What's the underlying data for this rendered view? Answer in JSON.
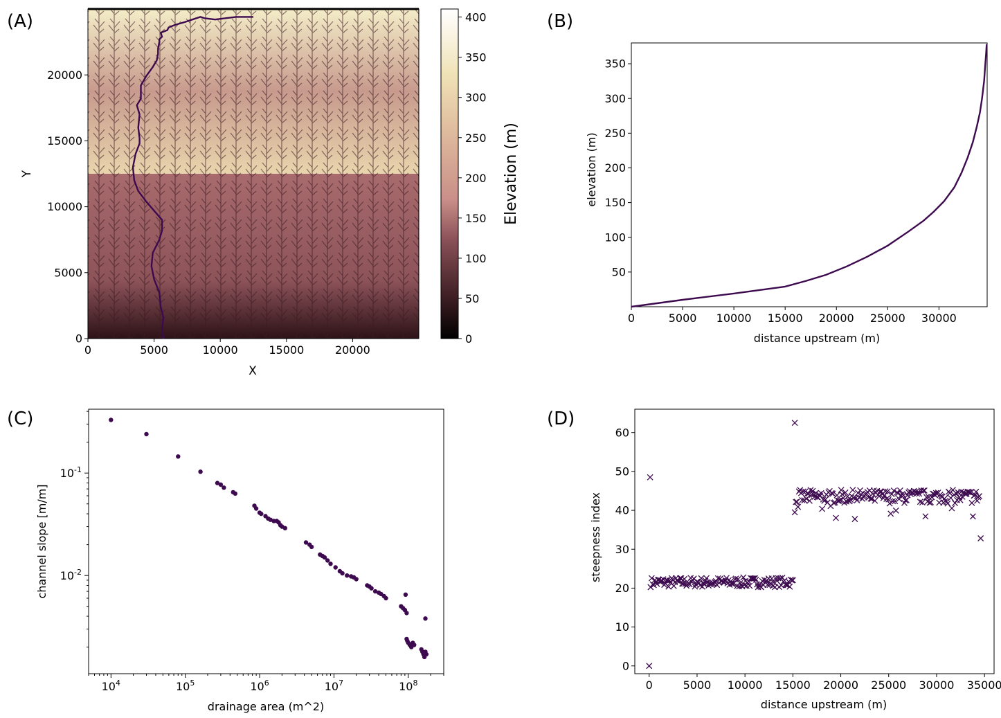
{
  "panels": {
    "a": {
      "label": "(A)"
    },
    "b": {
      "label": "(B)"
    },
    "c": {
      "label": "(C)"
    },
    "d": {
      "label": "(D)"
    }
  },
  "colors": {
    "line": "#3d0a4f",
    "terrain_low": "#1a0a0c",
    "terrain_mid": "#c98e88",
    "terrain_high": "#fdfbe9"
  },
  "chart_data": [
    {
      "id": "A",
      "type": "heatmap",
      "title": "",
      "xlabel": "X",
      "ylabel": "Y",
      "xlim": [
        0,
        25000
      ],
      "ylim": [
        0,
        25000
      ],
      "xticks": [
        0,
        5000,
        10000,
        15000,
        20000
      ],
      "yticks": [
        0,
        5000,
        10000,
        15000,
        20000
      ],
      "colorbar": {
        "label": "Elevation (m)",
        "range": [
          0,
          410
        ],
        "ticks": [
          0,
          50,
          100,
          150,
          200,
          250,
          300,
          350,
          400
        ]
      },
      "channel_path": {
        "x": [
          5700,
          5600,
          5700,
          5500,
          5400,
          5000,
          4800,
          4900,
          5400,
          5600,
          5600,
          5000,
          4400,
          3800,
          3500,
          3400,
          3600,
          3900,
          3900,
          3800,
          3900,
          3700,
          4000,
          4000,
          4400,
          4900,
          5200,
          5300,
          5300,
          5400,
          5400,
          5600,
          5500,
          6000,
          6100,
          6600,
          7300,
          7900,
          8500,
          8800,
          9600,
          10400,
          11200,
          12000,
          12500
        ],
        "y": [
          0,
          700,
          1600,
          2400,
          3500,
          4500,
          5500,
          6500,
          7500,
          8200,
          9000,
          9700,
          10400,
          11200,
          12000,
          13000,
          14000,
          14800,
          15200,
          16000,
          17000,
          17700,
          18200,
          19200,
          19900,
          20600,
          21100,
          21600,
          22000,
          22500,
          22700,
          22900,
          23200,
          23400,
          23600,
          23800,
          24000,
          24200,
          24400,
          24300,
          24200,
          24300,
          24400,
          24400,
          24400
        ]
      }
    },
    {
      "id": "B",
      "type": "line",
      "title": "",
      "xlabel": "distance upstream (m)",
      "ylabel": "elevation (m)",
      "xlim": [
        0,
        34700
      ],
      "ylim": [
        0,
        380
      ],
      "xticks": [
        0,
        5000,
        10000,
        15000,
        20000,
        25000,
        30000
      ],
      "yticks": [
        50,
        100,
        150,
        200,
        250,
        300,
        350
      ],
      "x": [
        0,
        5000,
        10000,
        15000,
        17000,
        19000,
        21000,
        23000,
        25000,
        27000,
        28500,
        29500,
        30500,
        31500,
        32200,
        32800,
        33300,
        33700,
        34000,
        34200,
        34400,
        34500,
        34600,
        34650
      ],
      "y": [
        0,
        10,
        19,
        29,
        37,
        46,
        58,
        72,
        88,
        108,
        124,
        137,
        152,
        172,
        193,
        215,
        237,
        260,
        280,
        300,
        325,
        345,
        365,
        378
      ]
    },
    {
      "id": "C",
      "type": "scatter",
      "title": "",
      "xlabel": "drainage area (m^2)",
      "ylabel": "channel slope [m/m]",
      "xscale": "log",
      "yscale": "log",
      "xlim": [
        5000,
        300000000
      ],
      "ylim": [
        0.0011,
        0.42
      ],
      "xtick_labels": [
        "10^4",
        "10^5",
        "10^6",
        "10^7",
        "10^8"
      ],
      "ytick_labels": [
        "10^-2",
        "10^-1"
      ],
      "x": [
        10000,
        30000,
        80000,
        160000,
        270000,
        300000,
        330000,
        440000,
        470000,
        850000,
        900000,
        1000000,
        1050000,
        1200000,
        1300000,
        1400000,
        1550000,
        1700000,
        1800000,
        1900000,
        2000000,
        2200000,
        4200000,
        4700000,
        5000000,
        6500000,
        7000000,
        7500000,
        8200000,
        9000000,
        10500000,
        12000000,
        13000000,
        15000000,
        17000000,
        18500000,
        20000000,
        28000000,
        30000000,
        32000000,
        36000000,
        40000000,
        43000000,
        47000000,
        50000000,
        80000000,
        85000000,
        90000000,
        92000000,
        95000000,
        95000000,
        97000000,
        100000000,
        105000000,
        110000000,
        115000000,
        120000000,
        150000000,
        155000000,
        160000000,
        165000000,
        170000000,
        175000000,
        170000000
      ],
      "y": [
        0.33,
        0.24,
        0.145,
        0.103,
        0.08,
        0.077,
        0.072,
        0.065,
        0.063,
        0.048,
        0.045,
        0.041,
        0.04,
        0.038,
        0.036,
        0.035,
        0.034,
        0.034,
        0.033,
        0.031,
        0.03,
        0.029,
        0.021,
        0.02,
        0.019,
        0.016,
        0.0155,
        0.015,
        0.014,
        0.013,
        0.012,
        0.011,
        0.0105,
        0.01,
        0.0098,
        0.0096,
        0.0092,
        0.008,
        0.0078,
        0.0075,
        0.007,
        0.0068,
        0.0066,
        0.0063,
        0.006,
        0.005,
        0.0048,
        0.0046,
        0.0065,
        0.0043,
        0.0024,
        0.0023,
        0.0022,
        0.0021,
        0.002,
        0.0022,
        0.0021,
        0.0019,
        0.0018,
        0.0017,
        0.0016,
        0.0018,
        0.0017,
        0.0038
      ]
    },
    {
      "id": "D",
      "type": "scatter",
      "title": "",
      "xlabel": "distance upstream (m)",
      "ylabel": "steepness index",
      "xlim": [
        -1500,
        36000
      ],
      "ylim": [
        -2,
        66
      ],
      "xticks": [
        0,
        5000,
        10000,
        15000,
        20000,
        25000,
        30000,
        35000
      ],
      "yticks": [
        0,
        10,
        20,
        30,
        40,
        50,
        60
      ],
      "outliers": {
        "x": [
          0,
          100,
          15200,
          34600
        ],
        "y": [
          0,
          48.5,
          62.5,
          32.8
        ]
      },
      "segment_low": {
        "x_range": [
          0,
          15000
        ],
        "y_center": 21.5,
        "y_spread": 2.5
      },
      "segment_high": {
        "x_range": [
          15200,
          34500
        ],
        "y_center": 43.5,
        "y_spread": 3.5
      }
    }
  ]
}
